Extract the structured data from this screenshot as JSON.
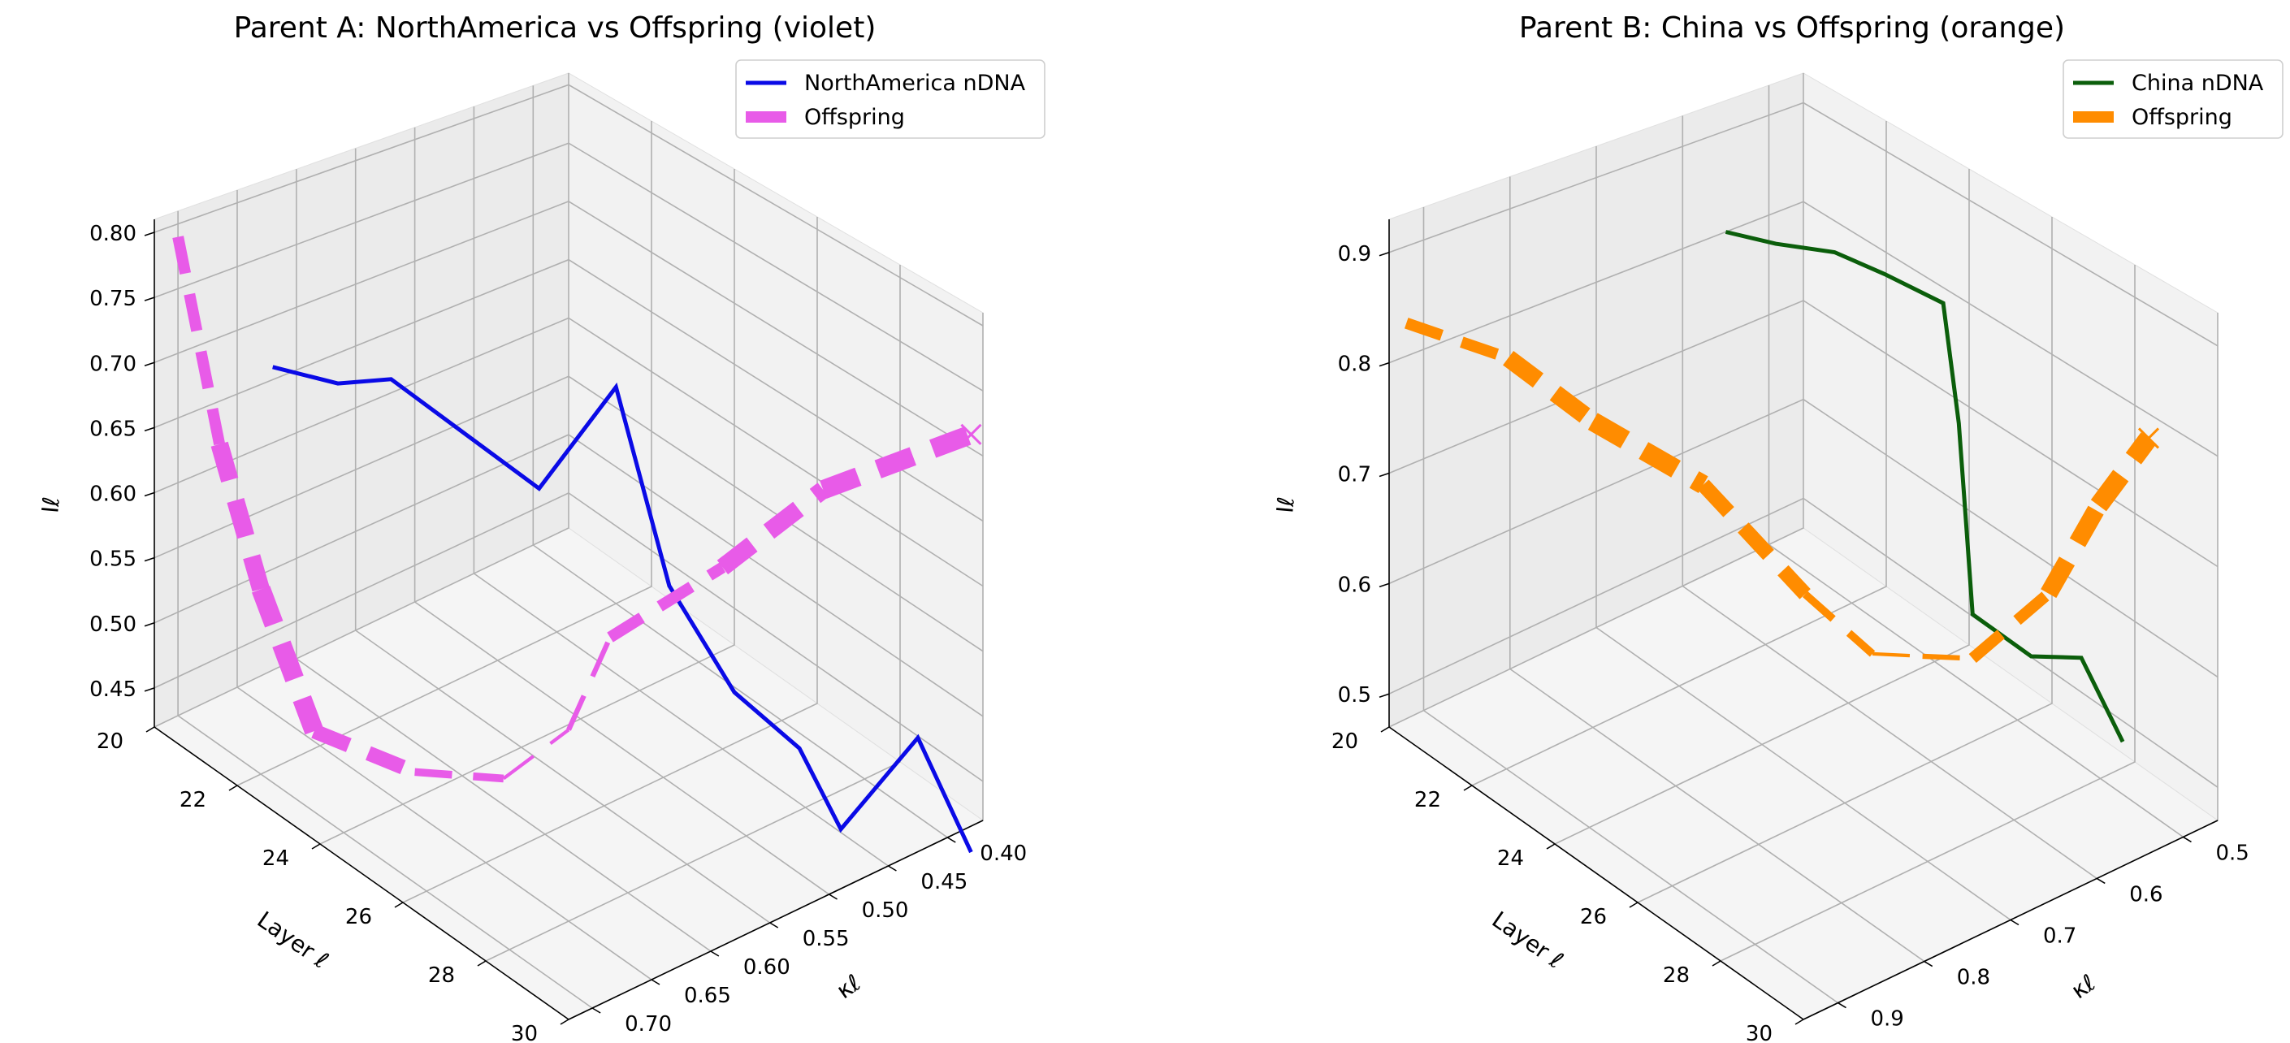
{
  "chart_data": [
    {
      "type": "line3d",
      "title": "Parent A: NorthAmerica  vs Offspring (violet)",
      "xlabel": "Layer ℓ",
      "ylabel": "κℓ",
      "zlabel": "Iℓ",
      "xlim": [
        20,
        30
      ],
      "ylim": [
        0.37,
        0.72
      ],
      "zlim": [
        0.42,
        0.81
      ],
      "xticks": [
        "20",
        "22",
        "24",
        "26",
        "28",
        "30"
      ],
      "yticks": [
        "0.40",
        "0.45",
        "0.50",
        "0.55",
        "0.60",
        "0.65",
        "0.70"
      ],
      "zticks": [
        "0.45",
        "0.50",
        "0.55",
        "0.60",
        "0.65",
        "0.70",
        "0.75",
        "0.80"
      ],
      "series": [
        {
          "name": "NorthAmerica nDNA",
          "color": "#0a0ae6",
          "style": "solid",
          "x": [
            20,
            21,
            22,
            23,
            24,
            25,
            26,
            27,
            28,
            29,
            30
          ],
          "y": [
            0.62,
            0.6,
            0.59,
            0.5,
            0.47,
            0.46,
            0.44,
            0.42,
            0.42,
            0.39,
            0.38
          ],
          "z": [
            0.66,
            0.66,
            0.68,
            0.58,
            0.67,
            0.53,
            0.46,
            0.43,
            0.39,
            0.47,
            0.4
          ]
        },
        {
          "name": "Offspring",
          "color": "#e85be8",
          "style": "dashed",
          "end_marker": "x",
          "x": [
            20,
            21,
            22,
            23,
            24,
            25,
            26,
            27,
            28,
            29,
            30
          ],
          "y": [
            0.7,
            0.7,
            0.7,
            0.69,
            0.64,
            0.6,
            0.58,
            0.58,
            0.52,
            0.47,
            0.38
          ],
          "z": [
            0.79,
            0.65,
            0.56,
            0.47,
            0.44,
            0.44,
            0.49,
            0.58,
            0.63,
            0.69,
            0.72
          ]
        }
      ]
    },
    {
      "type": "line3d",
      "title": "Parent B: China  vs Offspring (orange)",
      "xlabel": "Layer ℓ",
      "ylabel": "κℓ",
      "zlabel": "Iℓ",
      "xlim": [
        20,
        30
      ],
      "ylim": [
        0.46,
        0.94
      ],
      "zlim": [
        0.47,
        0.93
      ],
      "xticks": [
        "20",
        "22",
        "24",
        "26",
        "28",
        "30"
      ],
      "yticks": [
        "0.5",
        "0.6",
        "0.7",
        "0.8",
        "0.9"
      ],
      "zticks": [
        "0.5",
        "0.6",
        "0.7",
        "0.8",
        "0.9"
      ],
      "series": [
        {
          "name": "China nDNA",
          "color": "#0b5e0b",
          "style": "solid",
          "x": [
            20,
            21,
            22,
            23,
            24,
            25,
            26,
            27,
            28,
            29,
            30
          ],
          "y": [
            0.55,
            0.54,
            0.52,
            0.51,
            0.49,
            0.52,
            0.56,
            0.6,
            0.58,
            0.57,
            0.57
          ],
          "z": [
            0.8,
            0.81,
            0.82,
            0.82,
            0.81,
            0.73,
            0.68,
            0.63,
            0.61,
            0.63,
            0.58
          ]
        },
        {
          "name": "Offspring",
          "color": "#ff8c00",
          "style": "dashed",
          "end_marker": "x",
          "x": [
            20,
            21,
            22,
            23,
            24,
            25,
            26,
            27,
            28,
            29,
            30
          ],
          "y": [
            0.92,
            0.85,
            0.8,
            0.72,
            0.65,
            0.62,
            0.61,
            0.6,
            0.56,
            0.55,
            0.54
          ],
          "z": [
            0.83,
            0.8,
            0.75,
            0.69,
            0.59,
            0.55,
            0.57,
            0.59,
            0.66,
            0.76,
            0.84
          ]
        }
      ]
    }
  ]
}
